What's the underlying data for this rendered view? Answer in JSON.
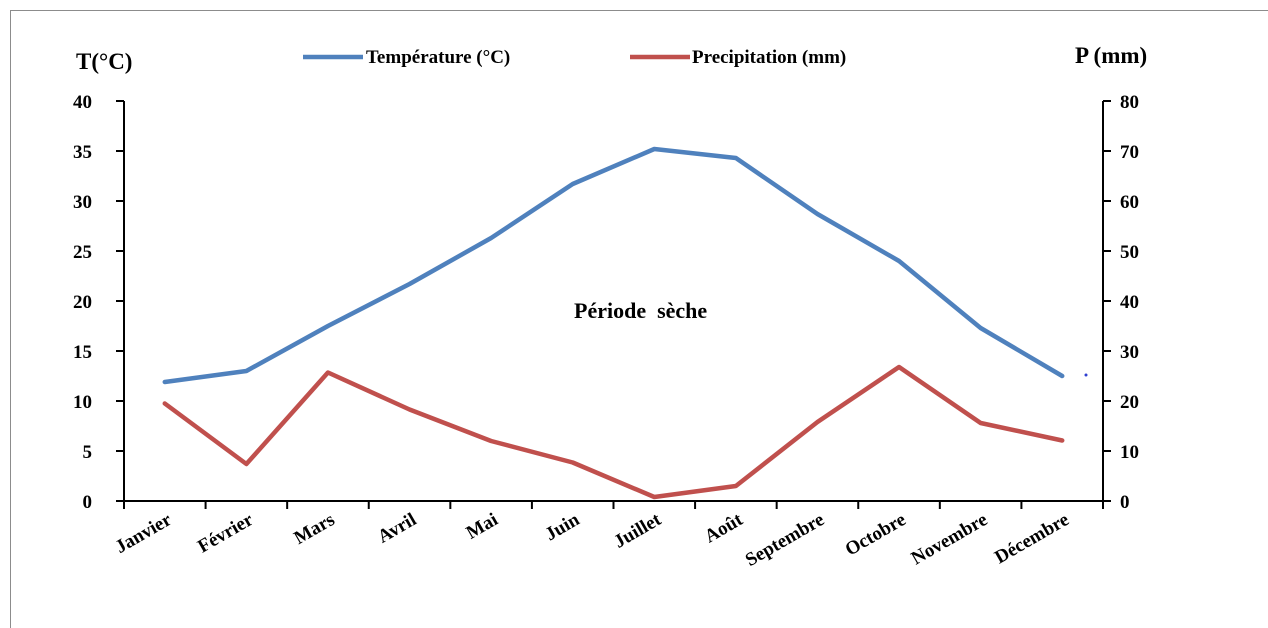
{
  "chart_data": {
    "type": "line",
    "categories": [
      "Janvier",
      "Février",
      "Mars",
      "Avril",
      "Mai",
      "Juin",
      "Juillet",
      "Août",
      "Septembre",
      "Octobre",
      "Novembre",
      "Décembre"
    ],
    "series": [
      {
        "name": "Température (°C)",
        "axis": "left",
        "color": "#4f81bd",
        "values": [
          11.9,
          13.0,
          17.5,
          21.7,
          26.3,
          31.7,
          35.2,
          34.3,
          28.7,
          24.0,
          17.3,
          12.5
        ]
      },
      {
        "name": "Precipitation (mm)",
        "axis": "right",
        "color": "#c0504d",
        "values": [
          19.5,
          7.4,
          25.7,
          18.3,
          12.0,
          7.7,
          0.8,
          3.0,
          15.8,
          26.8,
          15.6,
          12.1
        ]
      }
    ],
    "y_left": {
      "label": "T(°C)",
      "range": [
        0,
        40
      ],
      "ticks": [
        0,
        5,
        10,
        15,
        20,
        25,
        30,
        35,
        40
      ]
    },
    "y_right": {
      "label": "P (mm)",
      "range": [
        0,
        80
      ],
      "ticks": [
        0,
        10,
        20,
        30,
        40,
        50,
        60,
        70,
        80
      ]
    },
    "annotation": "Période  sèche",
    "legend_position": "top",
    "grid": false
  }
}
